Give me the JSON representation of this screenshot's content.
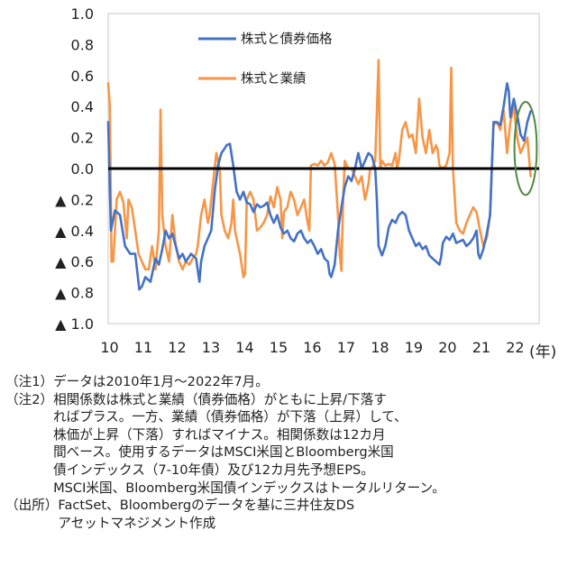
{
  "chart_data": {
    "type": "line",
    "title": "",
    "xlabel": "(年)",
    "ylabel": "",
    "xlim": [
      2010.0,
      2022.75
    ],
    "ylim": [
      -1.0,
      1.0
    ],
    "x_ticks": [
      {
        "value": 2010,
        "label": "10"
      },
      {
        "value": 2011,
        "label": "11"
      },
      {
        "value": 2012,
        "label": "12"
      },
      {
        "value": 2013,
        "label": "13"
      },
      {
        "value": 2014,
        "label": "14"
      },
      {
        "value": 2015,
        "label": "15"
      },
      {
        "value": 2016,
        "label": "16"
      },
      {
        "value": 2017,
        "label": "17"
      },
      {
        "value": 2018,
        "label": "18"
      },
      {
        "value": 2019,
        "label": "19"
      },
      {
        "value": 2020,
        "label": "20"
      },
      {
        "value": 2021,
        "label": "21"
      },
      {
        "value": 2022,
        "label": "22"
      }
    ],
    "y_ticks": [
      {
        "value": 1.0,
        "label": "1.0"
      },
      {
        "value": 0.8,
        "label": "0.8"
      },
      {
        "value": 0.6,
        "label": "0.6"
      },
      {
        "value": 0.4,
        "label": "0.4"
      },
      {
        "value": 0.2,
        "label": "0.2"
      },
      {
        "value": 0.0,
        "label": "0.0"
      },
      {
        "value": -0.2,
        "label": "▲ 0.2"
      },
      {
        "value": -0.4,
        "label": "▲ 0.4"
      },
      {
        "value": -0.6,
        "label": "▲ 0.6"
      },
      {
        "value": -0.8,
        "label": "▲ 0.8"
      },
      {
        "value": -1.0,
        "label": "▲ 1.0"
      }
    ],
    "legend_position": "top-center",
    "grid": false,
    "series": [
      {
        "name": "株式と債券価格",
        "color": "#4472c4",
        "points": [
          [
            2010.0,
            0.3
          ],
          [
            2010.08,
            -0.4
          ],
          [
            2010.2,
            -0.27
          ],
          [
            2010.35,
            -0.3
          ],
          [
            2010.5,
            -0.5
          ],
          [
            2010.65,
            -0.55
          ],
          [
            2010.8,
            -0.55
          ],
          [
            2010.92,
            -0.78
          ],
          [
            2011.0,
            -0.76
          ],
          [
            2011.1,
            -0.7
          ],
          [
            2011.25,
            -0.73
          ],
          [
            2011.4,
            -0.58
          ],
          [
            2011.5,
            -0.62
          ],
          [
            2011.6,
            -0.52
          ],
          [
            2011.7,
            -0.4
          ],
          [
            2011.8,
            -0.45
          ],
          [
            2011.9,
            -0.42
          ],
          [
            2012.0,
            -0.5
          ],
          [
            2012.1,
            -0.58
          ],
          [
            2012.2,
            -0.55
          ],
          [
            2012.3,
            -0.6
          ],
          [
            2012.45,
            -0.55
          ],
          [
            2012.6,
            -0.58
          ],
          [
            2012.7,
            -0.73
          ],
          [
            2012.75,
            -0.6
          ],
          [
            2012.85,
            -0.5
          ],
          [
            2012.95,
            -0.45
          ],
          [
            2013.05,
            -0.4
          ],
          [
            2013.15,
            -0.15
          ],
          [
            2013.25,
            0.02
          ],
          [
            2013.35,
            0.1
          ],
          [
            2013.45,
            0.13
          ],
          [
            2013.5,
            0.15
          ],
          [
            2013.6,
            0.16
          ],
          [
            2013.7,
            0.02
          ],
          [
            2013.8,
            -0.15
          ],
          [
            2013.9,
            -0.2
          ],
          [
            2014.0,
            -0.15
          ],
          [
            2014.1,
            -0.22
          ],
          [
            2014.2,
            -0.23
          ],
          [
            2014.3,
            -0.28
          ],
          [
            2014.4,
            -0.23
          ],
          [
            2014.5,
            -0.25
          ],
          [
            2014.6,
            -0.24
          ],
          [
            2014.7,
            -0.22
          ],
          [
            2014.8,
            -0.3
          ],
          [
            2014.9,
            -0.35
          ],
          [
            2015.0,
            -0.3
          ],
          [
            2015.1,
            -0.38
          ],
          [
            2015.2,
            -0.42
          ],
          [
            2015.3,
            -0.4
          ],
          [
            2015.4,
            -0.45
          ],
          [
            2015.5,
            -0.47
          ],
          [
            2015.6,
            -0.42
          ],
          [
            2015.7,
            -0.4
          ],
          [
            2015.8,
            -0.45
          ],
          [
            2015.9,
            -0.48
          ],
          [
            2016.0,
            -0.46
          ],
          [
            2016.1,
            -0.5
          ],
          [
            2016.2,
            -0.55
          ],
          [
            2016.3,
            -0.52
          ],
          [
            2016.4,
            -0.58
          ],
          [
            2016.5,
            -0.6
          ],
          [
            2016.55,
            -0.68
          ],
          [
            2016.6,
            -0.7
          ],
          [
            2016.7,
            -0.62
          ],
          [
            2016.8,
            -0.4
          ],
          [
            2016.9,
            -0.25
          ],
          [
            2017.0,
            -0.12
          ],
          [
            2017.1,
            -0.05
          ],
          [
            2017.2,
            -0.08
          ],
          [
            2017.3,
            0.0
          ],
          [
            2017.4,
            0.1
          ],
          [
            2017.5,
            0.0
          ],
          [
            2017.6,
            0.05
          ],
          [
            2017.7,
            0.1
          ],
          [
            2017.8,
            0.08
          ],
          [
            2017.9,
            0.0
          ],
          [
            2017.95,
            -0.2
          ],
          [
            2018.0,
            -0.5
          ],
          [
            2018.1,
            -0.56
          ],
          [
            2018.2,
            -0.5
          ],
          [
            2018.3,
            -0.38
          ],
          [
            2018.4,
            -0.33
          ],
          [
            2018.5,
            -0.35
          ],
          [
            2018.6,
            -0.3
          ],
          [
            2018.7,
            -0.28
          ],
          [
            2018.8,
            -0.3
          ],
          [
            2018.9,
            -0.4
          ],
          [
            2019.0,
            -0.45
          ],
          [
            2019.1,
            -0.5
          ],
          [
            2019.2,
            -0.48
          ],
          [
            2019.3,
            -0.52
          ],
          [
            2019.4,
            -0.5
          ],
          [
            2019.5,
            -0.56
          ],
          [
            2019.6,
            -0.58
          ],
          [
            2019.7,
            -0.6
          ],
          [
            2019.8,
            -0.62
          ],
          [
            2019.85,
            -0.57
          ],
          [
            2019.9,
            -0.48
          ],
          [
            2020.0,
            -0.44
          ],
          [
            2020.1,
            -0.46
          ],
          [
            2020.2,
            -0.42
          ],
          [
            2020.3,
            -0.48
          ],
          [
            2020.4,
            -0.47
          ],
          [
            2020.5,
            -0.46
          ],
          [
            2020.6,
            -0.5
          ],
          [
            2020.7,
            -0.48
          ],
          [
            2020.8,
            -0.45
          ],
          [
            2020.9,
            -0.4
          ],
          [
            2020.95,
            -0.55
          ],
          [
            2021.0,
            -0.58
          ],
          [
            2021.1,
            -0.52
          ],
          [
            2021.2,
            -0.42
          ],
          [
            2021.3,
            -0.3
          ],
          [
            2021.4,
            0.3
          ],
          [
            2021.5,
            0.3
          ],
          [
            2021.6,
            0.28
          ],
          [
            2021.7,
            0.4
          ],
          [
            2021.8,
            0.55
          ],
          [
            2021.85,
            0.5
          ],
          [
            2021.9,
            0.33
          ],
          [
            2022.0,
            0.45
          ],
          [
            2022.1,
            0.35
          ],
          [
            2022.2,
            0.22
          ],
          [
            2022.3,
            0.18
          ],
          [
            2022.4,
            0.3
          ],
          [
            2022.5,
            0.37
          ]
        ]
      },
      {
        "name": "株式と業績",
        "color": "#f79646",
        "points": [
          [
            2010.0,
            0.55
          ],
          [
            2010.05,
            0.4
          ],
          [
            2010.1,
            -0.6
          ],
          [
            2010.15,
            -0.6
          ],
          [
            2010.25,
            -0.2
          ],
          [
            2010.35,
            -0.15
          ],
          [
            2010.45,
            -0.22
          ],
          [
            2010.55,
            -0.45
          ],
          [
            2010.6,
            -0.2
          ],
          [
            2010.7,
            -0.25
          ],
          [
            2010.8,
            -0.4
          ],
          [
            2010.9,
            -0.55
          ],
          [
            2011.0,
            -0.6
          ],
          [
            2011.1,
            -0.65
          ],
          [
            2011.2,
            -0.65
          ],
          [
            2011.3,
            -0.5
          ],
          [
            2011.4,
            -0.65
          ],
          [
            2011.5,
            -0.4
          ],
          [
            2011.55,
            0.38
          ],
          [
            2011.6,
            -0.3
          ],
          [
            2011.7,
            -0.5
          ],
          [
            2011.8,
            -0.6
          ],
          [
            2011.9,
            -0.3
          ],
          [
            2012.0,
            -0.5
          ],
          [
            2012.1,
            -0.6
          ],
          [
            2012.2,
            -0.65
          ],
          [
            2012.3,
            -0.6
          ],
          [
            2012.4,
            -0.62
          ],
          [
            2012.5,
            -0.58
          ],
          [
            2012.6,
            -0.55
          ],
          [
            2012.65,
            -0.5
          ],
          [
            2012.75,
            -0.3
          ],
          [
            2012.85,
            -0.2
          ],
          [
            2012.95,
            -0.35
          ],
          [
            2013.0,
            -0.3
          ],
          [
            2013.1,
            -0.1
          ],
          [
            2013.2,
            0.1
          ],
          [
            2013.3,
            0.0
          ],
          [
            2013.35,
            -0.3
          ],
          [
            2013.45,
            -0.4
          ],
          [
            2013.55,
            -0.45
          ],
          [
            2013.65,
            -0.35
          ],
          [
            2013.7,
            -0.2
          ],
          [
            2013.75,
            -0.4
          ],
          [
            2013.85,
            -0.5
          ],
          [
            2013.9,
            -0.55
          ],
          [
            2014.0,
            -0.7
          ],
          [
            2014.05,
            -0.68
          ],
          [
            2014.1,
            -0.2
          ],
          [
            2014.2,
            -0.15
          ],
          [
            2014.3,
            -0.2
          ],
          [
            2014.4,
            -0.4
          ],
          [
            2014.5,
            -0.38
          ],
          [
            2014.6,
            -0.35
          ],
          [
            2014.7,
            -0.3
          ],
          [
            2014.8,
            -0.18
          ],
          [
            2014.9,
            -0.25
          ],
          [
            2015.0,
            -0.12
          ],
          [
            2015.1,
            -0.2
          ],
          [
            2015.15,
            -0.45
          ],
          [
            2015.2,
            -0.28
          ],
          [
            2015.3,
            -0.25
          ],
          [
            2015.4,
            -0.15
          ],
          [
            2015.5,
            -0.2
          ],
          [
            2015.6,
            -0.3
          ],
          [
            2015.7,
            -0.25
          ],
          [
            2015.8,
            -0.2
          ],
          [
            2015.9,
            -0.35
          ],
          [
            2015.95,
            -0.4
          ],
          [
            2016.0,
            0.02
          ],
          [
            2016.1,
            0.03
          ],
          [
            2016.2,
            0.02
          ],
          [
            2016.3,
            0.05
          ],
          [
            2016.4,
            0.02
          ],
          [
            2016.5,
            0.04
          ],
          [
            2016.6,
            0.1
          ],
          [
            2016.7,
            0.03
          ],
          [
            2016.8,
            -0.3
          ],
          [
            2016.85,
            -0.55
          ],
          [
            2016.9,
            -0.66
          ],
          [
            2016.95,
            -0.2
          ],
          [
            2017.0,
            0.05
          ],
          [
            2017.1,
            0.0
          ],
          [
            2017.2,
            0.0
          ],
          [
            2017.3,
            -0.05
          ],
          [
            2017.4,
            -0.1
          ],
          [
            2017.5,
            -0.05
          ],
          [
            2017.6,
            -0.2
          ],
          [
            2017.7,
            -0.1
          ],
          [
            2017.75,
            0.0
          ],
          [
            2017.8,
            0.0
          ],
          [
            2017.9,
            0.05
          ],
          [
            2018.0,
            0.7
          ],
          [
            2018.05,
            0.0
          ],
          [
            2018.1,
            0.05
          ],
          [
            2018.2,
            0.02
          ],
          [
            2018.3,
            0.03
          ],
          [
            2018.4,
            0.02
          ],
          [
            2018.5,
            0.1
          ],
          [
            2018.55,
            0.0
          ],
          [
            2018.6,
            0.05
          ],
          [
            2018.7,
            0.25
          ],
          [
            2018.8,
            0.3
          ],
          [
            2018.9,
            0.2
          ],
          [
            2019.0,
            0.22
          ],
          [
            2019.1,
            0.1
          ],
          [
            2019.2,
            0.45
          ],
          [
            2019.3,
            0.2
          ],
          [
            2019.4,
            0.1
          ],
          [
            2019.5,
            0.25
          ],
          [
            2019.6,
            0.1
          ],
          [
            2019.7,
            0.15
          ],
          [
            2019.75,
            0.12
          ],
          [
            2019.8,
            0.02
          ],
          [
            2019.9,
            0.0
          ],
          [
            2020.0,
            0.02
          ],
          [
            2020.1,
            0.1
          ],
          [
            2020.15,
            0.65
          ],
          [
            2020.2,
            0.0
          ],
          [
            2020.3,
            -0.35
          ],
          [
            2020.4,
            -0.4
          ],
          [
            2020.5,
            -0.42
          ],
          [
            2020.6,
            -0.35
          ],
          [
            2020.7,
            -0.3
          ],
          [
            2020.8,
            -0.25
          ],
          [
            2020.9,
            -0.28
          ],
          [
            2021.0,
            -0.4
          ],
          [
            2021.1,
            -0.5
          ],
          [
            2021.2,
            -0.45
          ],
          [
            2021.3,
            -0.3
          ],
          [
            2021.4,
            0.28
          ],
          [
            2021.5,
            0.3
          ],
          [
            2021.6,
            0.25
          ],
          [
            2021.7,
            0.38
          ],
          [
            2021.8,
            0.1
          ],
          [
            2021.9,
            0.3
          ],
          [
            2022.0,
            0.4
          ],
          [
            2022.1,
            0.2
          ],
          [
            2022.2,
            0.1
          ],
          [
            2022.3,
            0.15
          ],
          [
            2022.4,
            0.2
          ],
          [
            2022.5,
            -0.05
          ]
        ]
      }
    ],
    "zero_line": {
      "value": 0.0,
      "color": "#000000"
    },
    "annotations": [
      {
        "type": "ellipse",
        "color": "#4e8a3e",
        "x_center": 2022.35,
        "y_center": 0.13,
        "x_radius": 0.33,
        "y_radius": 0.3
      }
    ]
  },
  "notes": [
    {
      "tag": "（注1）",
      "lines": [
        "データは2010年1月～2022年7月。"
      ]
    },
    {
      "tag": "（注2）",
      "lines": [
        "相関係数は株式と業績（債券価格）がともに上昇/下落す",
        "ればプラス。一方、業績（債券価格）が下落（上昇）して、",
        "株価が上昇（下落）すればマイナス。相関係数は12カ月",
        "間ベース。使用するデータはMSCI米国とBloomberg米国",
        "債インデックス（7-10年債）及び12カ月先予想EPS。",
        "MSCI米国、Bloomberg米国債インデックスはトータルリターン。"
      ]
    },
    {
      "tag": "（出所）",
      "lines": [
        "FactSet、Bloombergのデータを基に三井住友DS",
        "アセットマネジメント作成"
      ]
    }
  ]
}
